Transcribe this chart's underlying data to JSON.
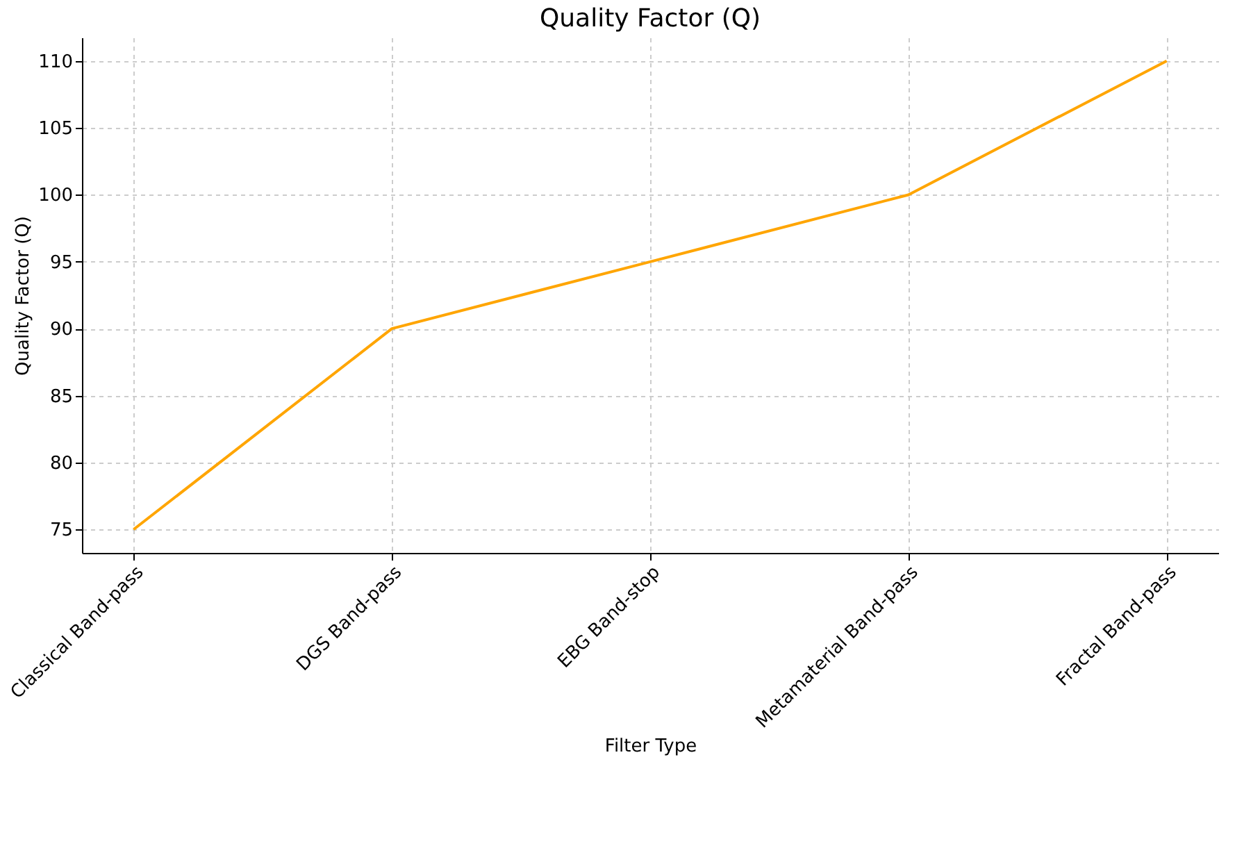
{
  "chart_data": {
    "type": "line",
    "title": "Quality Factor (Q)",
    "xlabel": "Filter Type",
    "ylabel": "Quality Factor (Q)",
    "categories": [
      "Classical Band-pass",
      "DGS Band-pass",
      "EBG Band-stop",
      "Metamaterial Band-pass",
      "Fractal Band-pass"
    ],
    "series": [
      {
        "color": "#ffa500",
        "values": [
          75,
          90,
          95,
          100,
          110
        ]
      }
    ],
    "ylim": [
      73.25,
      111.75
    ],
    "yticks": [
      75,
      80,
      85,
      90,
      95,
      100,
      105,
      110
    ],
    "grid": true,
    "marker": "none",
    "line_style": "solid"
  }
}
